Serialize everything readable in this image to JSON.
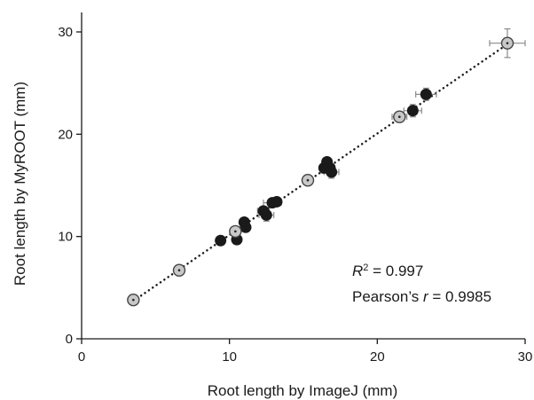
{
  "chart_data": {
    "type": "scatter",
    "xlabel": "Root length by ImageJ (mm)",
    "ylabel": "Root length by MyROOT (mm)",
    "xlim": [
      0,
      30
    ],
    "ylim": [
      0,
      30
    ],
    "xticks": [
      "0",
      "10",
      "20",
      "30"
    ],
    "yticks": [
      "0",
      "10",
      "20",
      "30"
    ],
    "grid": false,
    "series": [
      {
        "style": "black",
        "points": [
          {
            "x": 9.4,
            "y": 9.6,
            "xerr": 0.2,
            "yerr": 0.2
          },
          {
            "x": 10.5,
            "y": 9.7,
            "xerr": 0.2,
            "yerr": 0.2
          },
          {
            "x": 11.0,
            "y": 11.4,
            "xerr": 0.2,
            "yerr": 0.2
          },
          {
            "x": 11.1,
            "y": 10.9,
            "xerr": 0.2,
            "yerr": 0.2
          },
          {
            "x": 12.3,
            "y": 12.5,
            "xerr": 0.4,
            "yerr": 0.4
          },
          {
            "x": 12.5,
            "y": 12.1,
            "xerr": 0.5,
            "yerr": 0.6
          },
          {
            "x": 12.9,
            "y": 13.3,
            "xerr": 0.6,
            "yerr": 0.4
          },
          {
            "x": 13.2,
            "y": 13.4,
            "xerr": 0.2,
            "yerr": 0.2
          },
          {
            "x": 16.4,
            "y": 16.7,
            "xerr": 0.3,
            "yerr": 0.5
          },
          {
            "x": 16.6,
            "y": 17.3,
            "xerr": 0.3,
            "yerr": 0.4
          },
          {
            "x": 16.8,
            "y": 16.7,
            "xerr": 0.3,
            "yerr": 0.3
          },
          {
            "x": 16.9,
            "y": 16.3,
            "xerr": 0.5,
            "yerr": 0.6
          },
          {
            "x": 22.4,
            "y": 22.3,
            "xerr": 0.6,
            "yerr": 0.6
          },
          {
            "x": 23.3,
            "y": 23.9,
            "xerr": 0.7,
            "yerr": 0.6
          }
        ]
      },
      {
        "style": "grey",
        "points": [
          {
            "x": 3.5,
            "y": 3.8,
            "xerr": 0.15,
            "yerr": 0.15
          },
          {
            "x": 6.6,
            "y": 6.7,
            "xerr": 0.15,
            "yerr": 0.15
          },
          {
            "x": 10.4,
            "y": 10.5,
            "xerr": 0.2,
            "yerr": 0.2
          },
          {
            "x": 15.3,
            "y": 15.5,
            "xerr": 0.2,
            "yerr": 0.2
          },
          {
            "x": 21.5,
            "y": 21.7,
            "xerr": 0.5,
            "yerr": 0.4
          },
          {
            "x": 28.8,
            "y": 28.9,
            "xerr": 1.2,
            "yerr": 1.4
          }
        ]
      }
    ],
    "trendline": {
      "from": [
        3.5,
        3.7
      ],
      "to": [
        28.8,
        28.8
      ],
      "style": "dotted"
    },
    "annotations": {
      "r2_symbol": "R",
      "r2_power": "2",
      "r2_text": " = 0.997",
      "pearson_prefix": "Pearson’s ",
      "pearson_symbol": "r",
      "pearson_text": " = 0.9985"
    }
  },
  "colors": {
    "marker_black": "#1a1a1a",
    "marker_grey": "#c8c8c8",
    "marker_grey_edge": "#444444",
    "errorbar": "#8a8a8a",
    "axis": "#1a1a1a"
  }
}
